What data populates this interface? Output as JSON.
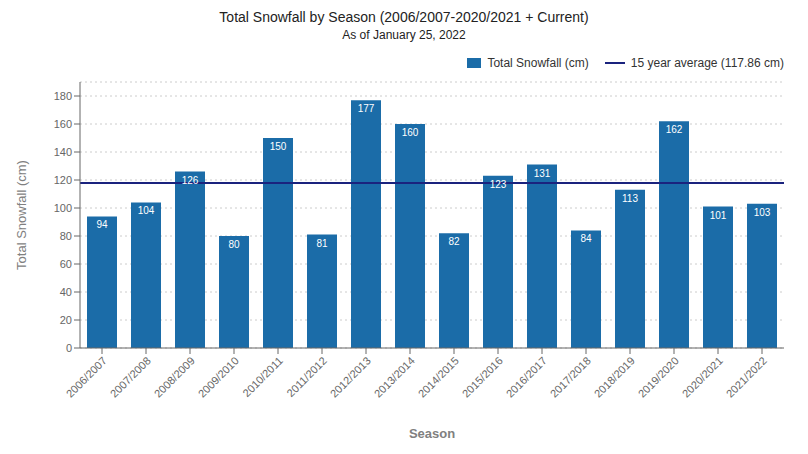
{
  "chart_data": {
    "type": "bar",
    "title": "Total Snowfall by Season (2006/2007-2020/2021 + Current)",
    "subtitle": "As of January 25, 2022",
    "x_label": "Season",
    "y_label": "Total Snowfall (cm)",
    "categories": [
      "2006/2007",
      "2007/2008",
      "2008/2009",
      "2009/2010",
      "2010/2011",
      "2011/2012",
      "2012/2013",
      "2013/2014",
      "2014/2015",
      "2015/2016",
      "2016/2017",
      "2017/2018",
      "2018/2019",
      "2019/2020",
      "2020/2021",
      "2021/2022"
    ],
    "series": [
      {
        "name": "Total Snowfall (cm)",
        "color": "#1B6CA8",
        "values": [
          94,
          104,
          126,
          80,
          150,
          81,
          177,
          160,
          82,
          123,
          131,
          84,
          113,
          162,
          101,
          103
        ]
      }
    ],
    "average": {
      "name": "15 year average (117.86 cm)",
      "value": 117.86,
      "color": "#1A237E"
    },
    "ylim": [
      0,
      190
    ],
    "yticks": [
      0,
      20,
      40,
      60,
      80,
      100,
      120,
      140,
      160,
      180
    ],
    "grid": true,
    "legend": "upper right",
    "data_labels": true
  }
}
